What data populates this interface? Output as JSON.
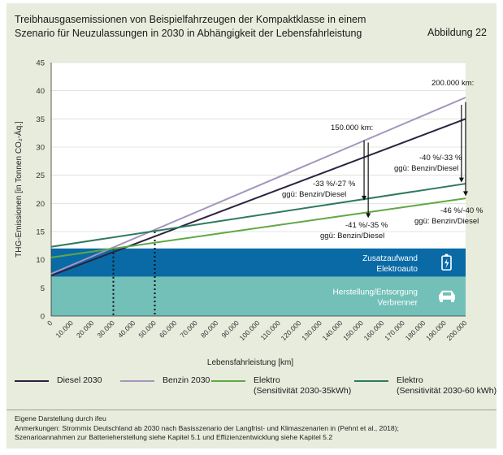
{
  "header": {
    "title_line1": "Treibhausgasemissionen von Beispielfahrzeugen der Kompaktklasse in einem",
    "title_line2": "Szenario für Neuzulassungen in 2030 in Abhängigkeit der Lebensfahrleistung",
    "figure_label": "Abbildung 22"
  },
  "chart_data": {
    "type": "line",
    "title": "Treibhausgasemissionen von Beispielfahrzeugen der Kompaktklasse in einem Szenario für Neuzulassungen in 2030 in Abhängigkeit der Lebensfahrleistung",
    "xlabel": "Lebensfahrleistung [km]",
    "ylabel": "THG-Emissionen [in Tonnen CO₂-Äq.]",
    "xlim": [
      0,
      200000
    ],
    "ylim": [
      0,
      45
    ],
    "x_ticks": [
      0,
      10000,
      20000,
      30000,
      40000,
      50000,
      60000,
      70000,
      80000,
      90000,
      100000,
      110000,
      120000,
      130000,
      140000,
      150000,
      160000,
      170000,
      180000,
      190000,
      200000
    ],
    "x_tick_labels": [
      "0",
      "10.000",
      "20.000",
      "30.000",
      "40.000",
      "50.000",
      "60.000",
      "70.000",
      "80.000",
      "90.000",
      "100.000",
      "110.000",
      "120.000",
      "130.000",
      "140.000",
      "150.000",
      "160.000",
      "170.000",
      "180.000",
      "190.000",
      "200.000"
    ],
    "y_ticks": [
      0,
      5,
      10,
      15,
      20,
      25,
      30,
      35,
      40,
      45
    ],
    "grid": true,
    "series": [
      {
        "name": "Diesel 2030",
        "color": "#2d2240",
        "x": [
          0,
          200000
        ],
        "y": [
          7.2,
          35.0
        ]
      },
      {
        "name": "Benzin 2030",
        "color": "#a596bd",
        "x": [
          0,
          200000
        ],
        "y": [
          7.5,
          38.8
        ]
      },
      {
        "name": "Elektro (Sensitivität 2030-35kWh)",
        "color": "#5fa846",
        "x": [
          0,
          200000
        ],
        "y": [
          10.4,
          20.9
        ]
      },
      {
        "name": "Elektro (Sensitivität 2030-60 kWh)",
        "color": "#2e7a60",
        "x": [
          0,
          200000
        ],
        "y": [
          12.3,
          23.5
        ]
      }
    ],
    "bands": [
      {
        "label_line1": "Herstellung/Entsorgung",
        "label_line2": "Verbrenner",
        "y_from": 0,
        "y_to": 7.0,
        "color": "#72c0b8",
        "icon": "car-icon"
      },
      {
        "label_line1": "Zusatzaufwand",
        "label_line2": "Elektroauto",
        "y_from": 7.0,
        "y_to": 12.0,
        "color": "#0a6aa6",
        "icon": "battery-icon"
      }
    ],
    "breakeven_markers": [
      {
        "x": 30000,
        "y": 12.0
      },
      {
        "x": 50000,
        "y": 15.0
      }
    ],
    "annotations": [
      {
        "id": "km150",
        "text": "150.000 km:"
      },
      {
        "id": "km200",
        "text": "200.000 km:"
      },
      {
        "id": "a150_60_l1",
        "text": "-33 %/-27 %"
      },
      {
        "id": "a150_60_l2",
        "text": "ggü: Benzin/Diesel"
      },
      {
        "id": "a150_35_l1",
        "text": "-41 %/-35 %"
      },
      {
        "id": "a150_35_l2",
        "text": "ggü: Benzin/Diesel"
      },
      {
        "id": "a200_60_l1",
        "text": "-40 %/-33 %"
      },
      {
        "id": "a200_60_l2",
        "text": "ggü: Benzin/Diesel"
      },
      {
        "id": "a200_35_l1",
        "text": "-46 %/-40 %"
      },
      {
        "id": "a200_35_l2",
        "text": "ggü: Benzin/Diesel"
      }
    ]
  },
  "legend": {
    "diesel": "Diesel 2030",
    "benzin": "Benzin 2030",
    "elektro35_l1": "Elektro",
    "elektro35_l2": "(Sensitivität 2030-35kWh)",
    "elektro60_l1": "Elektro",
    "elektro60_l2": "(Sensitivität 2030-60 kWh)",
    "colors": {
      "diesel": "#2d2240",
      "benzin": "#a596bd",
      "elektro35": "#5fa846",
      "elektro60": "#2e7a60"
    }
  },
  "notes": {
    "line1": "Eigene Darstellung durch ifeu",
    "line2": "Anmerkungen: Strommix Deutschland ab 2030 nach Basisszenario der Langfrist- und Klimaszenarien in (Pehnt et al., 2018);",
    "line3": "Szenarioannahmen zur Batterieherstellung siehe Kapitel 5.1 und Effizienzentwicklung siehe Kapitel 5.2"
  }
}
